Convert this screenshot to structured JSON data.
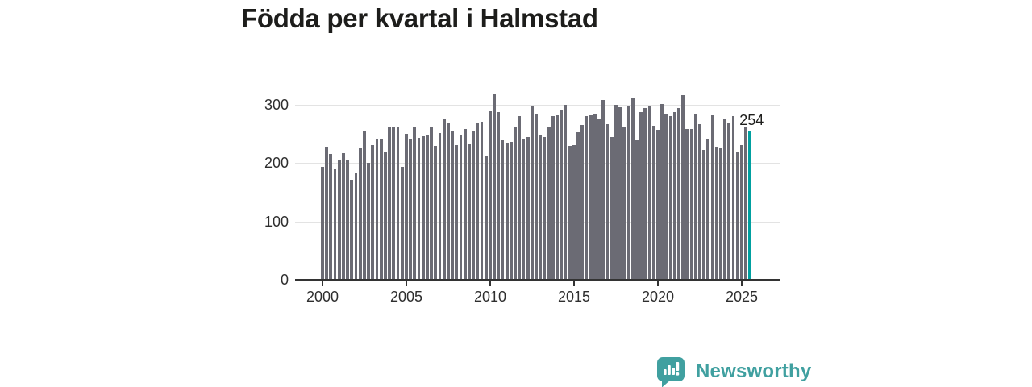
{
  "title": "Födda per kvartal i Halmstad",
  "colors": {
    "bar": "#6b6b74",
    "highlight": "#00a0a0",
    "title_text": "#1d1d1b",
    "axis_text": "#2e2e2e",
    "axis_line": "#333333",
    "gridline": "#e3e3e3",
    "logo": "#40a0a0",
    "background": "#ffffff"
  },
  "chart_data": {
    "type": "bar",
    "title": "Födda per kvartal i Halmstad",
    "x_first": "2000 Q1",
    "x_last": "2025 Q3",
    "x_step": "quarter",
    "x_tick_labels": [
      "2000",
      "2005",
      "2010",
      "2015",
      "2020",
      "2025"
    ],
    "y_ticks": [
      0,
      100,
      200,
      300
    ],
    "ylim": [
      0,
      330
    ],
    "grid": true,
    "legend_position": "none",
    "highlight_last": true,
    "annotation_label": "254",
    "values": [
      193,
      228,
      215,
      189,
      204,
      217,
      204,
      172,
      183,
      227,
      256,
      201,
      231,
      240,
      242,
      219,
      261,
      261,
      261,
      194,
      250,
      242,
      261,
      243,
      246,
      248,
      262,
      229,
      251,
      275,
      268,
      254,
      231,
      249,
      258,
      232,
      254,
      268,
      271,
      211,
      289,
      318,
      288,
      239,
      235,
      237,
      263,
      281,
      242,
      245,
      298,
      284,
      249,
      245,
      261,
      281,
      282,
      292,
      300,
      230,
      231,
      253,
      265,
      281,
      282,
      285,
      276,
      308,
      267,
      244,
      300,
      296,
      262,
      299,
      313,
      239,
      288,
      295,
      297,
      264,
      257,
      301,
      284,
      280,
      288,
      294,
      316,
      259,
      259,
      285,
      267,
      223,
      242,
      282,
      228,
      226,
      276,
      270,
      281,
      220,
      231,
      263,
      254
    ]
  },
  "logo": {
    "text": "Newsworthy"
  }
}
